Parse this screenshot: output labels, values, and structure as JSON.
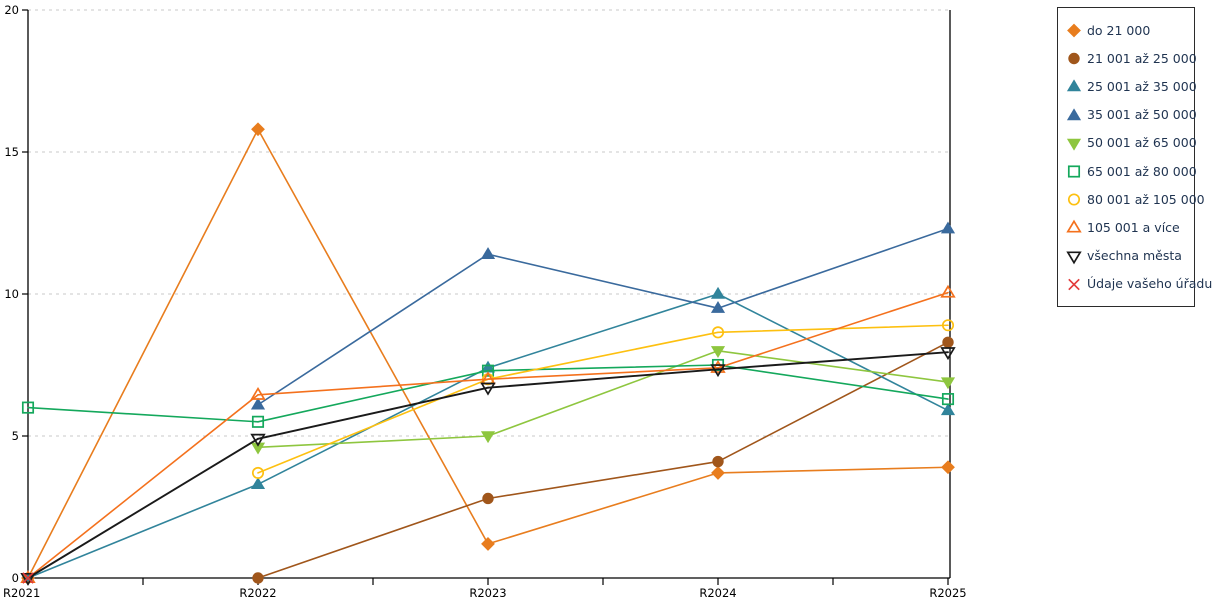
{
  "chart_data": {
    "type": "line",
    "title": "",
    "xlabel": "",
    "ylabel": "",
    "categories": [
      "R2021",
      "R2022",
      "R2023",
      "R2024",
      "R2025"
    ],
    "ylim": [
      0,
      20
    ],
    "yticks": [
      0,
      5,
      10,
      15,
      20
    ],
    "grid": "horizontal dashed gridlines at labeled y ticks",
    "legend_position": "right",
    "series": [
      {
        "name": "do 21 000",
        "color": "#e87d1e",
        "marker": "diamond",
        "fill": "filled",
        "values": [
          0,
          15.8,
          1.2,
          3.7,
          3.9
        ]
      },
      {
        "name": "21 001 až 25 000",
        "color": "#a0561b",
        "marker": "circle",
        "fill": "filled",
        "values": [
          null,
          0,
          2.8,
          4.1,
          8.3
        ]
      },
      {
        "name": "25 001 až 35 000",
        "color": "#31849b",
        "marker": "triangle-up",
        "fill": "filled",
        "values": [
          0,
          3.3,
          7.4,
          10.0,
          5.9
        ]
      },
      {
        "name": "35 001 až 50 000",
        "color": "#3a6a9d",
        "marker": "triangle-up",
        "fill": "filled",
        "values": [
          null,
          6.1,
          11.4,
          9.5,
          12.3
        ]
      },
      {
        "name": "50 001 až 65 000",
        "color": "#8ec63f",
        "marker": "triangle-down",
        "fill": "filled",
        "values": [
          null,
          4.6,
          5.0,
          8.0,
          6.9
        ]
      },
      {
        "name": "65 001 až 80 000",
        "color": "#14a85c",
        "marker": "square",
        "fill": "open",
        "values": [
          6.0,
          5.5,
          7.3,
          7.5,
          6.3
        ]
      },
      {
        "name": "80 001 až 105 000",
        "color": "#fdc010",
        "marker": "circle",
        "fill": "open",
        "values": [
          null,
          3.7,
          7.0,
          8.65,
          8.9
        ]
      },
      {
        "name": "105 001 a více",
        "color": "#f4711d",
        "marker": "triangle-up",
        "fill": "open",
        "values": [
          0,
          6.45,
          7.0,
          7.4,
          10.05
        ]
      },
      {
        "name": "všechna města",
        "color": "#1a1a1a",
        "marker": "triangle-down",
        "fill": "open",
        "values": [
          0,
          4.9,
          6.7,
          7.35,
          7.95
        ]
      },
      {
        "name": "Údaje vašeho úřadu",
        "color": "#e23b3b",
        "marker": "x",
        "fill": "open",
        "values": [
          0,
          null,
          null,
          null,
          null
        ]
      }
    ]
  }
}
